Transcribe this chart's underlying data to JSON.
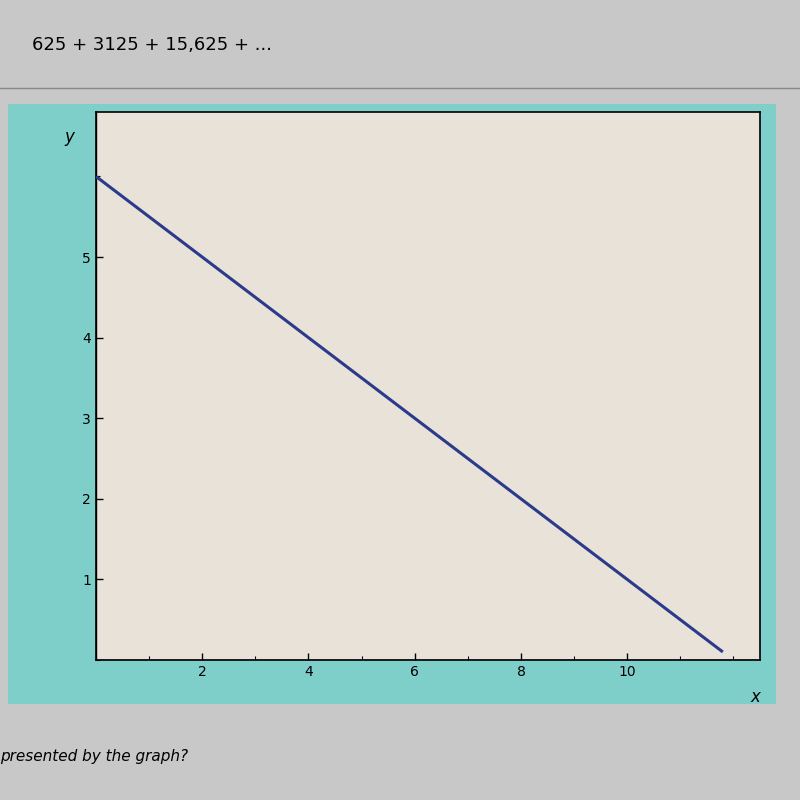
{
  "slope": -0.5,
  "intercept": 6,
  "line_x_start": 0.0,
  "line_x_end": 11.8,
  "xlim": [
    0,
    12.5
  ],
  "ylim": [
    0,
    6.8
  ],
  "xticks": [
    2,
    4,
    6,
    8,
    10
  ],
  "yticks": [
    1,
    2,
    3,
    4,
    5
  ],
  "line_color": "#2B3A8A",
  "line_width": 2.2,
  "bg_gray": "#C8C8C8",
  "bg_teal": "#7ECECA",
  "bg_chart": "#E8E2D8",
  "top_text": "625 + 3125 + 15,625 + ...",
  "bottom_text": "presented by the graph?",
  "tick_fontsize": 10,
  "axis_label_fontsize": 12,
  "xlabel": "x",
  "ylabel": "y"
}
